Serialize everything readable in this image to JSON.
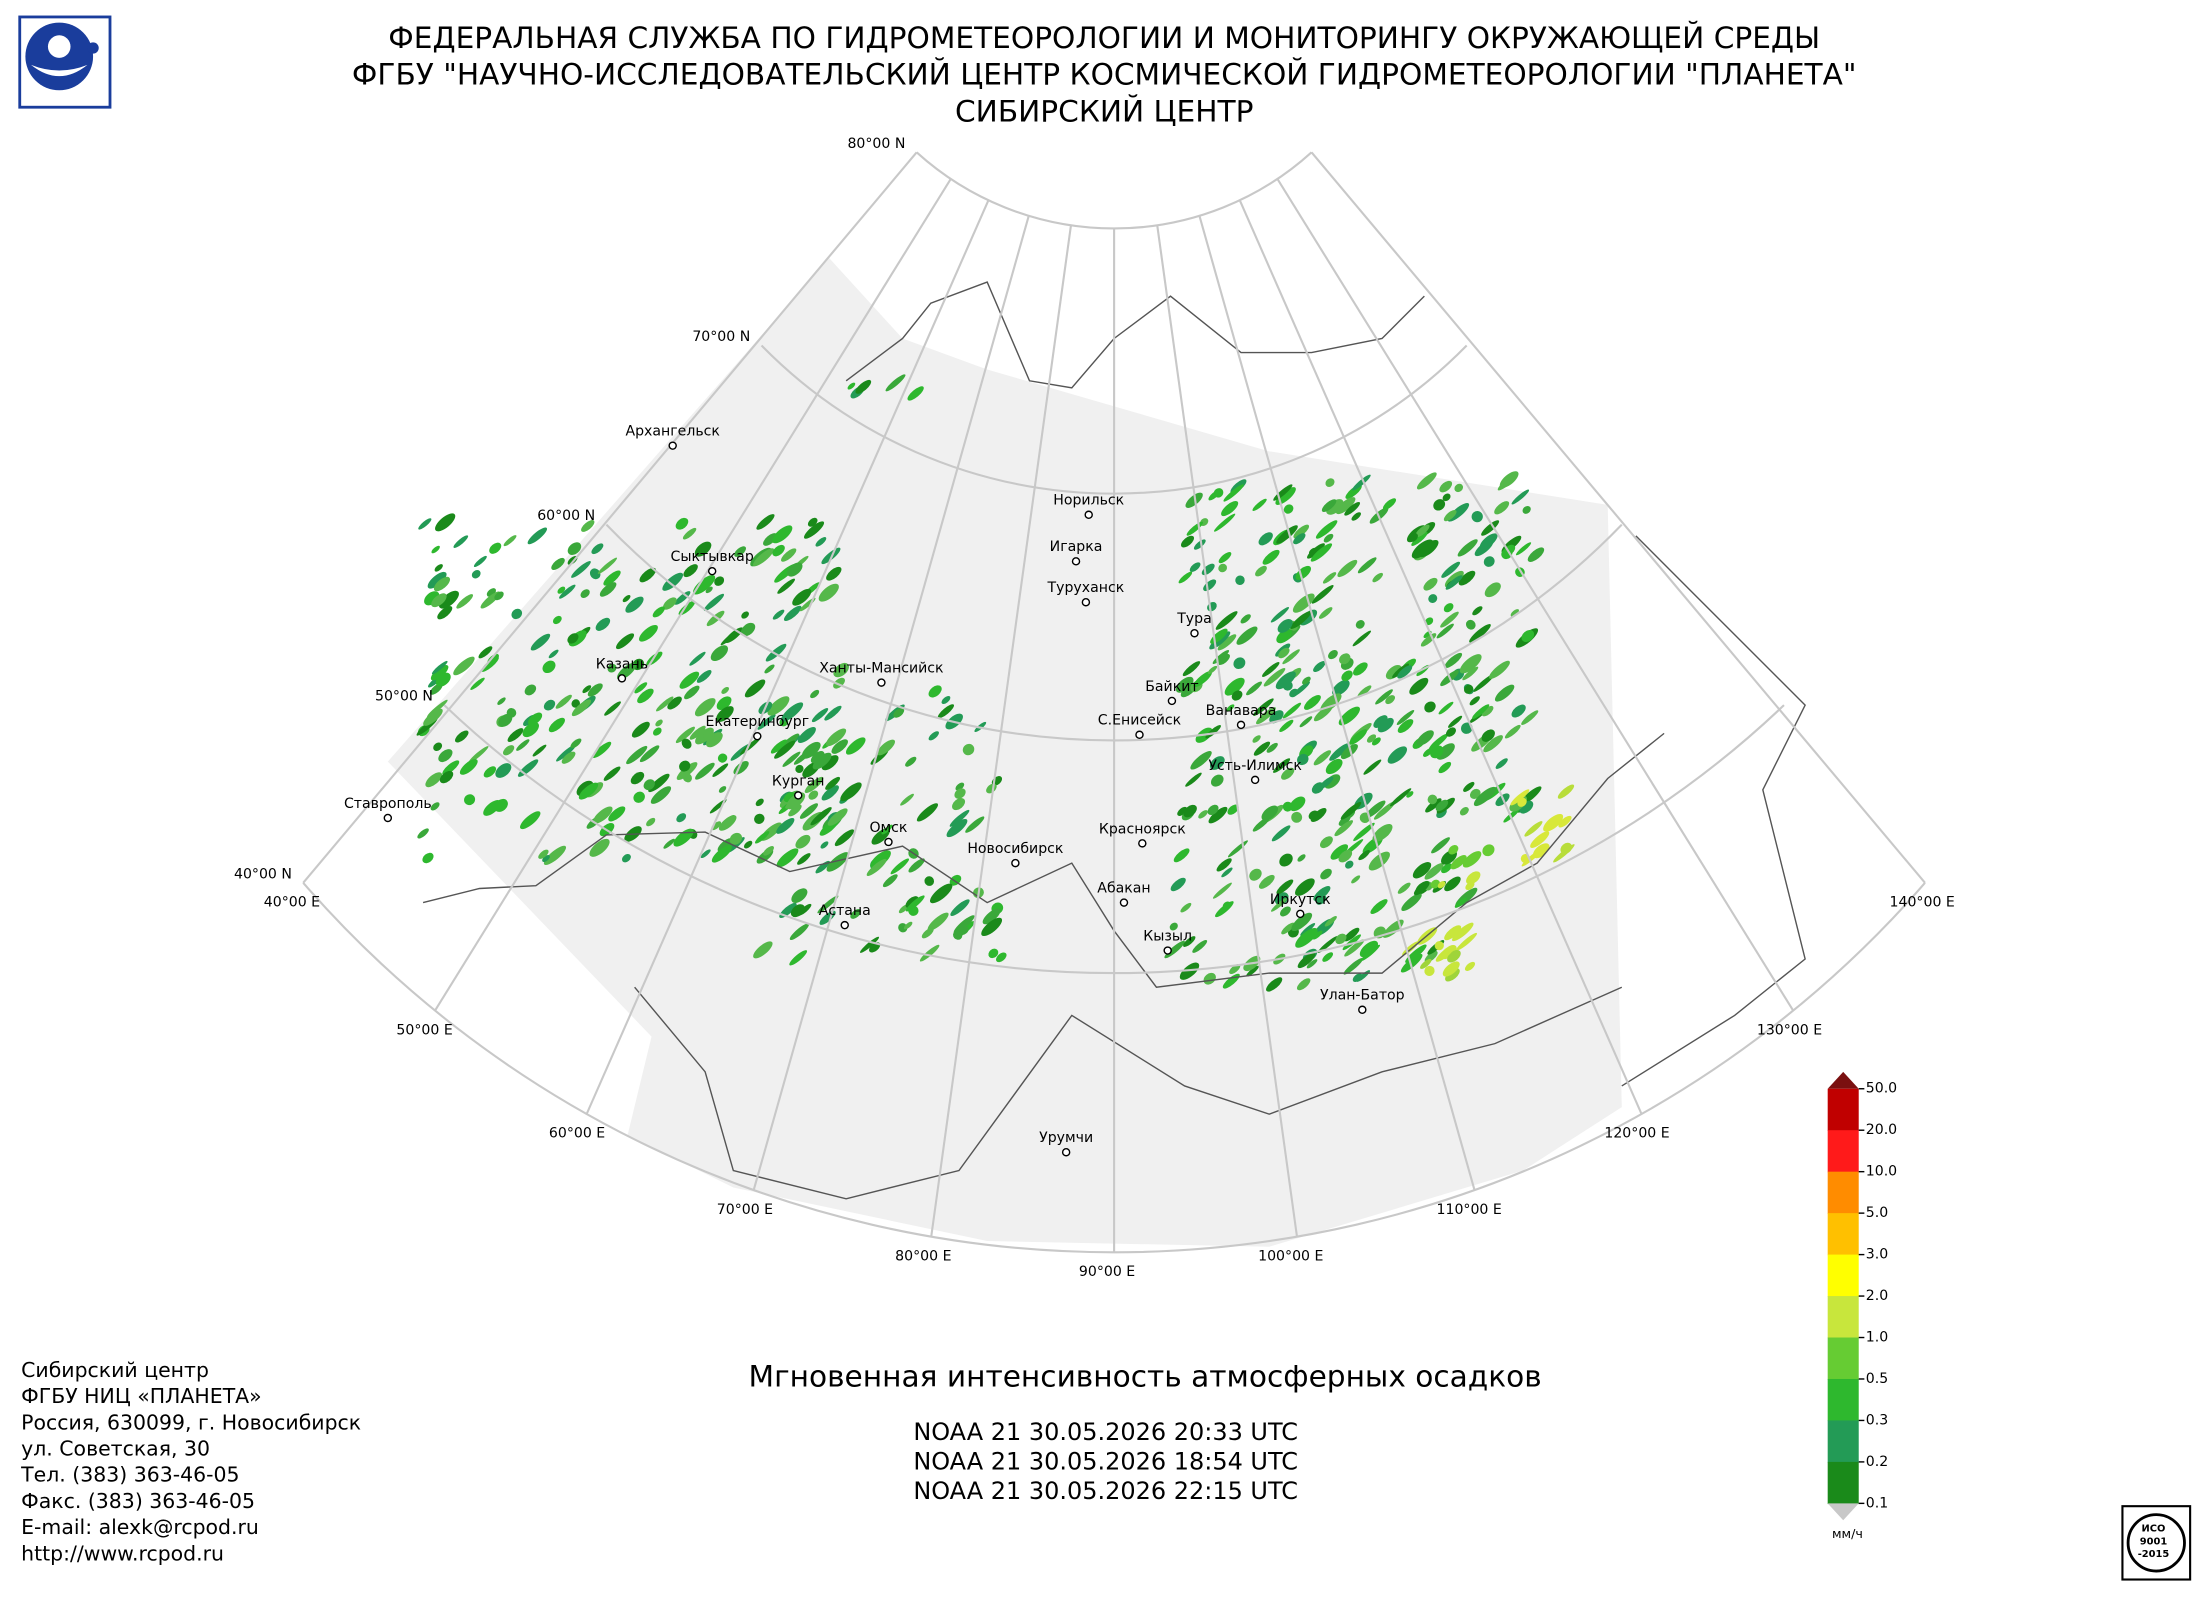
{
  "header": {
    "lines": [
      "ФЕДЕРАЛЬНАЯ СЛУЖБА ПО ГИДРОМЕТЕОРОЛОГИИ И МОНИТОРИНГУ ОКРУЖАЮЩЕЙ СРЕДЫ",
      "ФГБУ \"НАУЧНО-ИССЛЕДОВАТЕЛЬСКИЙ ЦЕНТР КОСМИЧЕСКОЙ ГИДРОМЕТЕОРОЛОГИИ \"ПЛАНЕТА\"",
      "СИБИРСКИЙ ЦЕНТР"
    ]
  },
  "graticule": {
    "lat_labels": [
      "80°00 N",
      "70°00 N",
      "60°00 N",
      "50°00 N",
      "40°00 N"
    ],
    "lon_labels": [
      "40°00 E",
      "50°00 E",
      "60°00 E",
      "70°00 E",
      "80°00 E",
      "90°00 E",
      "100°00 E",
      "110°00 E",
      "120°00 E",
      "130°00 E",
      "140°00 E"
    ]
  },
  "cities": [
    "Архангельск",
    "Сыктывкар",
    "Казань",
    "Ханты-Мансийск",
    "Екатеринбург",
    "Курган",
    "Омск",
    "Новосибирск",
    "Астана",
    "Ставрополь",
    "Норильск",
    "Игарка",
    "Туруханск",
    "Тура",
    "Байкит",
    "Ванавара",
    "С.Енисейск",
    "Усть-Илимск",
    "Красноярск",
    "Абакан",
    "Кызыл",
    "Иркутск",
    "Улан-Батор",
    "Урумчи"
  ],
  "legend": {
    "labels": [
      "50.0",
      "20.0",
      "10.0",
      "5.0",
      "3.0",
      "2.0",
      "1.0",
      "0.5",
      "0.3",
      "0.2",
      "0.1"
    ],
    "unit": "мм/ч"
  },
  "title": "Мгновенная интенсивность атмосферных осадков",
  "passes": [
    "NOAA 21 30.05.2026  20:33 UTC",
    "NOAA 21 30.05.2026  18:54 UTC",
    "NOAA 21 30.05.2026  22:15 UTC"
  ],
  "contact": [
    "Сибирский центр",
    "ФГБУ НИЦ «ПЛАНЕТА»",
    "Россия, 630099, г. Новосибирск",
    "ул. Советская, 30",
    "Тел. (383) 363-46-05",
    "Факс. (383) 363-46-05",
    "E-mail: alexk@rcpod.ru",
    "http://www.rcpod.ru"
  ],
  "iso_badge": [
    "ИСО",
    "9001",
    "-2015"
  ]
}
